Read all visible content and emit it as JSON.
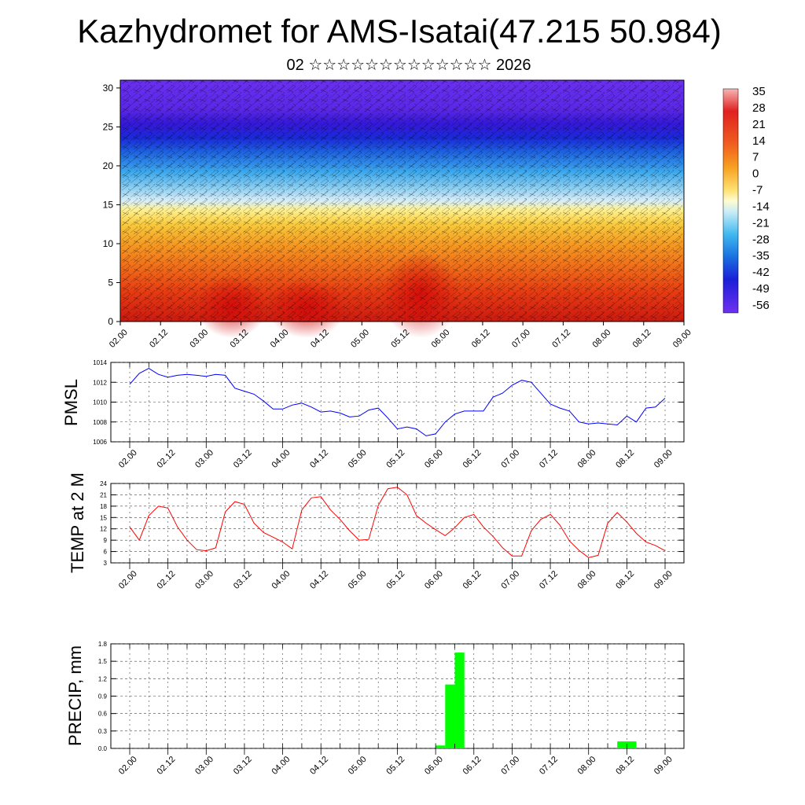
{
  "header": {
    "title": "Kazhydromet for AMS-Isatai(47.215 50.984)",
    "subtitle": "02 ☆☆☆☆☆☆☆☆☆☆☆☆☆ 2026"
  },
  "colors": {
    "pmsl_line": "#0000ff",
    "temp_line": "#ff0000",
    "precip_bar": "#00ff00",
    "grid": "#555555"
  },
  "chart_data": [
    {
      "type": "heatmap",
      "name": "vertical-cross-section",
      "description_source": "filled temperature contours with wind barbs overlay",
      "x_tick_labels": [
        "02.00",
        "02.12",
        "03.00",
        "03.12",
        "04.00",
        "04.12",
        "05.00",
        "05.12",
        "06.00",
        "06.12",
        "07.00",
        "07.12",
        "08.00",
        "08.12",
        "09.00"
      ],
      "y_ticks": [
        0,
        5,
        10,
        15,
        20,
        25,
        30
      ],
      "ylim": [
        0,
        31
      ],
      "colorbar_labels": [
        "35",
        "28",
        "21",
        "14",
        "7",
        "0",
        "-7",
        "-14",
        "-21",
        "-28",
        "-35",
        "-42",
        "-49",
        "-56"
      ],
      "colorbar_range": [
        -63,
        40
      ]
    },
    {
      "type": "line",
      "name": "pmsl",
      "ylabel": "PMSL",
      "ylim": [
        1006,
        1014
      ],
      "y_ticks": [
        1006,
        1008,
        1010,
        1012,
        1014
      ],
      "x_tick_labels": [
        "02.00",
        "02.12",
        "03.00",
        "03.12",
        "04.00",
        "04.12",
        "05.00",
        "05.12",
        "06.00",
        "06.12",
        "07.00",
        "07.12",
        "08.00",
        "08.12",
        "09.00"
      ],
      "x": [
        0,
        3,
        6,
        9,
        12,
        15,
        18,
        21,
        24,
        27,
        30,
        33,
        36,
        39,
        42,
        45,
        48,
        51,
        54,
        57,
        60,
        63,
        66,
        69,
        72,
        75,
        78,
        81,
        84,
        87,
        90,
        93,
        96,
        99,
        102,
        105,
        108,
        111,
        114,
        117,
        120,
        123,
        126,
        129,
        132,
        135,
        138,
        141,
        144,
        147,
        150,
        153,
        156,
        159,
        162,
        165,
        168
      ],
      "values": [
        1011.8,
        1012.9,
        1013.4,
        1012.8,
        1012.5,
        1012.7,
        1012.8,
        1012.7,
        1012.6,
        1012.8,
        1012.7,
        1011.4,
        1011.1,
        1010.8,
        1010.1,
        1009.3,
        1009.3,
        1009.7,
        1009.9,
        1009.5,
        1009.0,
        1009.1,
        1008.9,
        1008.5,
        1008.6,
        1009.2,
        1009.4,
        1008.4,
        1007.3,
        1007.5,
        1007.3,
        1006.6,
        1006.8,
        1008.0,
        1008.8,
        1009.1,
        1009.1,
        1009.1,
        1010.5,
        1010.9,
        1011.7,
        1012.2,
        1012.0,
        1010.9,
        1009.8,
        1009.4,
        1009.1,
        1008.0,
        1007.8,
        1007.9,
        1007.8,
        1007.7,
        1008.6,
        1008.0,
        1009.4,
        1009.5,
        1010.4
      ]
    },
    {
      "type": "line",
      "name": "temp-2m",
      "ylabel": "TEMP at 2 M",
      "ylim": [
        3,
        24
      ],
      "y_ticks": [
        3,
        6,
        9,
        12,
        15,
        18,
        21,
        24
      ],
      "x_tick_labels": [
        "02.00",
        "02.12",
        "03.00",
        "03.12",
        "04.00",
        "04.12",
        "05.00",
        "05.12",
        "06.00",
        "06.12",
        "07.00",
        "07.12",
        "08.00",
        "08.12",
        "09.00"
      ],
      "x": [
        0,
        3,
        6,
        9,
        12,
        15,
        18,
        21,
        24,
        27,
        30,
        33,
        36,
        39,
        42,
        45,
        48,
        51,
        54,
        57,
        60,
        63,
        66,
        69,
        72,
        75,
        78,
        81,
        84,
        87,
        90,
        93,
        96,
        99,
        102,
        105,
        108,
        111,
        114,
        117,
        120,
        123,
        126,
        129,
        132,
        135,
        138,
        141,
        144,
        147,
        150,
        153,
        156,
        159,
        162,
        165,
        168
      ],
      "values": [
        12.5,
        9.0,
        15.5,
        18.0,
        17.5,
        12.5,
        9.0,
        6.5,
        6.2,
        7.0,
        16.5,
        19.2,
        18.5,
        13.5,
        11.0,
        9.8,
        8.5,
        6.7,
        17.0,
        20.2,
        20.5,
        17.0,
        14.5,
        11.5,
        9.0,
        9.2,
        18.2,
        22.6,
        23.0,
        21.0,
        15.5,
        13.5,
        11.8,
        10.2,
        12.3,
        15.0,
        15.8,
        12.5,
        10.0,
        7.0,
        4.8,
        4.8,
        11.5,
        14.5,
        15.8,
        13.0,
        8.8,
        6.3,
        4.4,
        5.0,
        13.5,
        16.3,
        13.8,
        10.8,
        8.5,
        7.6,
        6.2
      ]
    },
    {
      "type": "bar",
      "name": "precip",
      "ylabel": "PRECIP, mm",
      "ylim": [
        0,
        1.8
      ],
      "y_tick_labels": [
        "0.0",
        "0.3",
        "0.6",
        "0.9",
        "1.2",
        "1.5",
        "1.8"
      ],
      "x_tick_labels": [
        "02.00",
        "02.12",
        "03.00",
        "03.12",
        "04.00",
        "04.12",
        "05.00",
        "05.12",
        "06.00",
        "06.12",
        "07.00",
        "07.12",
        "08.00",
        "08.12",
        "09.00"
      ],
      "bars": [
        {
          "x0": 96,
          "x1": 99,
          "value": 0.05
        },
        {
          "x0": 99,
          "x1": 102,
          "value": 1.1
        },
        {
          "x0": 102,
          "x1": 105,
          "value": 1.65
        },
        {
          "x0": 153,
          "x1": 159,
          "value": 0.12
        }
      ]
    }
  ]
}
